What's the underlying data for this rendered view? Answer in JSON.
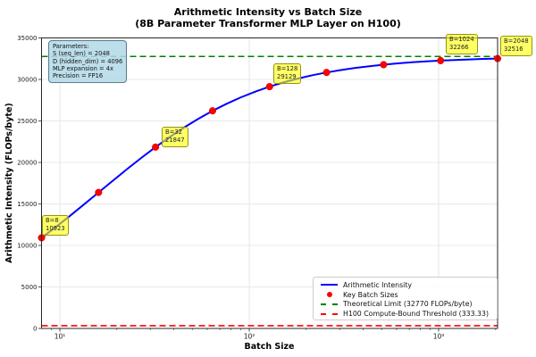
{
  "figure": {
    "title_line1": "Arithmetic Intensity vs Batch Size",
    "title_line2": "(8B Parameter Transformer MLP Layer on H100)"
  },
  "axes": {
    "xlabel": "Batch Size",
    "ylabel": "Arithmetic Intensity (FLOPs/byte)",
    "xticks": [
      "10¹",
      "10²",
      "10³"
    ],
    "yticks": [
      "0",
      "5000",
      "10000",
      "15000",
      "20000",
      "25000",
      "30000",
      "35000"
    ]
  },
  "params_box": {
    "title": "Parameters:",
    "lines": [
      "S (seq_len) = 2048",
      "D (hidden_dim) = 4096",
      "MLP expansion = 4x",
      "Precision = FP16"
    ]
  },
  "annotations": [
    {
      "label": "B=8",
      "value": "10923"
    },
    {
      "label": "B=32",
      "value": "21847"
    },
    {
      "label": "B=128",
      "value": "29129"
    },
    {
      "label": "B=1024",
      "value": "32266"
    },
    {
      "label": "B=2048",
      "value": "32516"
    }
  ],
  "legend": [
    {
      "label": "Arithmetic Intensity",
      "marker": "line",
      "color": "#0000ff"
    },
    {
      "label": "Key Batch Sizes",
      "marker": "dot",
      "color": "#ff0000"
    },
    {
      "label": "Theoretical Limit (32770 FLOPs/byte)",
      "marker": "dashed",
      "color": "#008000"
    },
    {
      "label": "H100 Compute-Bound Threshold (333.33)",
      "marker": "dashed",
      "color": "#ff0000"
    }
  ],
  "colors": {
    "curve": "#0000ff",
    "points": "#ff0000",
    "theoretical_limit": "#008000",
    "threshold": "#ff0000",
    "grid": "#e0e0e0",
    "spine": "#262626",
    "annotation_fill": "#ffff00",
    "params_fill": "#b1d8e7"
  },
  "chart_data": {
    "type": "line",
    "title": "Arithmetic Intensity vs Batch Size (8B Parameter Transformer MLP Layer on H100)",
    "xlabel": "Batch Size",
    "ylabel": "Arithmetic Intensity (FLOPs/byte)",
    "x_scale": "log",
    "xlim": [
      8,
      2048
    ],
    "ylim": [
      0,
      35000
    ],
    "grid": true,
    "legend_position": "lower right",
    "series": [
      {
        "name": "Arithmetic Intensity",
        "type": "line",
        "color": "#0000ff",
        "x": [
          8,
          16,
          32,
          64,
          128,
          256,
          512,
          1024,
          2048
        ],
        "y": [
          10923,
          16385,
          21847,
          26216,
          29129,
          30841,
          31777,
          32266,
          32516
        ]
      },
      {
        "name": "Key Batch Sizes",
        "type": "scatter",
        "color": "#ff0000",
        "x": [
          8,
          16,
          32,
          64,
          128,
          256,
          512,
          1024,
          2048
        ],
        "y": [
          10923,
          16385,
          21847,
          26216,
          29129,
          30841,
          31777,
          32266,
          32516
        ]
      }
    ],
    "curve_samples": {
      "x": [
        8,
        9.51,
        11.31,
        13.45,
        16,
        19.03,
        22.63,
        26.91,
        32,
        38.05,
        45.25,
        53.82,
        64,
        76.11,
        90.51,
        107.63,
        128,
        152.2,
        181.02,
        215.27,
        256,
        304.44,
        362.04,
        430.54,
        512,
        608.87,
        724.08,
        861.08,
        1024,
        1217.75,
        1448.15,
        1722.16,
        2048
      ],
      "y": [
        10923,
        12217,
        13571,
        14967,
        16385,
        17801,
        19196,
        20550,
        21847,
        23070,
        24209,
        25261,
        26216,
        27077,
        27847,
        28529,
        29129,
        29653,
        30108,
        30503,
        30842,
        31133,
        31382,
        31596,
        31777,
        31931,
        32061,
        32172,
        32266,
        32345,
        32412,
        32468,
        32516
      ]
    },
    "hlines": [
      {
        "y": 32770,
        "label": "Theoretical Limit (32770 FLOPs/byte)",
        "color": "#008000",
        "style": "dashed"
      },
      {
        "y": 333.33,
        "label": "H100 Compute-Bound Threshold (333.33)",
        "color": "#ff0000",
        "style": "dashed"
      }
    ],
    "annotated_points": [
      {
        "batch": 8,
        "value": 10923
      },
      {
        "batch": 32,
        "value": 21847
      },
      {
        "batch": 128,
        "value": 29129
      },
      {
        "batch": 1024,
        "value": 32266
      },
      {
        "batch": 2048,
        "value": 32516
      }
    ]
  }
}
